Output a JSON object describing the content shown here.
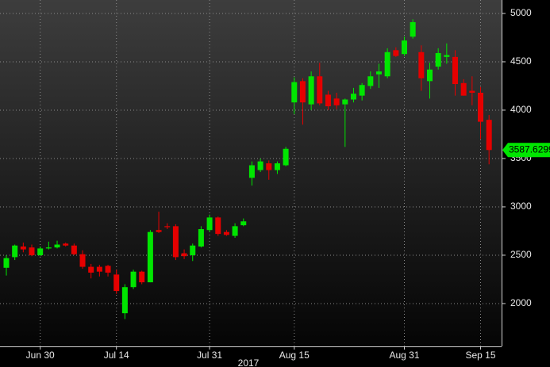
{
  "chart_data": {
    "type": "candlestick",
    "categories": [
      null,
      null,
      null,
      null,
      "Jun 30",
      null,
      null,
      null,
      null,
      null,
      null,
      null,
      null,
      "Jul 14",
      null,
      null,
      null,
      null,
      null,
      null,
      null,
      null,
      null,
      null,
      "Jul 31",
      null,
      null,
      null,
      null,
      null,
      null,
      null,
      null,
      null,
      "Aug 15",
      null,
      null,
      null,
      null,
      null,
      null,
      null,
      null,
      null,
      null,
      null,
      null,
      "Aug 31",
      null,
      null,
      null,
      null,
      null,
      null,
      null,
      null,
      "Sep 15",
      null
    ],
    "open": [
      2370,
      2480,
      2590,
      2580,
      2500,
      2570,
      2580,
      2620,
      2600,
      2510,
      2380,
      2380,
      2390,
      2300,
      1900,
      2170,
      2330,
      2220,
      2760,
      2800,
      2800,
      2520,
      2500,
      2590,
      2760,
      2890,
      2740,
      2700,
      2810,
      3300,
      3380,
      3450,
      3380,
      3430,
      4080,
      4300,
      4060,
      4350,
      4160,
      4120,
      4060,
      4110,
      4150,
      4250,
      4370,
      4350,
      4620,
      4580,
      4760,
      4600,
      4300,
      4450,
      4550,
      4550,
      4280,
      4200,
      4180,
      3900
    ],
    "high": [
      2500,
      2610,
      2630,
      2610,
      2590,
      2640,
      2650,
      2630,
      2620,
      2550,
      2410,
      2400,
      2400,
      2350,
      2200,
      2350,
      2340,
      2760,
      2950,
      2830,
      2820,
      2560,
      2620,
      2800,
      2920,
      2900,
      2760,
      2830,
      2880,
      3470,
      3500,
      3480,
      3470,
      3620,
      4340,
      4330,
      4400,
      4490,
      4200,
      4180,
      4120,
      4230,
      4280,
      4400,
      4480,
      4640,
      4650,
      4760,
      4940,
      4670,
      4490,
      4640,
      4690,
      4620,
      4320,
      4350,
      4240,
      3950
    ],
    "low": [
      2290,
      2450,
      2530,
      2490,
      2490,
      2560,
      2570,
      2590,
      2500,
      2360,
      2260,
      2280,
      2280,
      2100,
      1840,
      2150,
      2200,
      2220,
      2730,
      2770,
      2450,
      2460,
      2440,
      2580,
      2740,
      2700,
      2700,
      2680,
      2800,
      3220,
      3360,
      3280,
      3340,
      3420,
      3960,
      3850,
      4000,
      4050,
      4000,
      4010,
      3620,
      4080,
      4100,
      4220,
      4230,
      4330,
      4550,
      4560,
      4740,
      4200,
      4120,
      4420,
      4480,
      4150,
      4150,
      4050,
      3700,
      3440
    ],
    "close": [
      2470,
      2600,
      2560,
      2500,
      2570,
      2580,
      2610,
      2600,
      2510,
      2380,
      2320,
      2330,
      2320,
      2130,
      2170,
      2330,
      2220,
      2740,
      2740,
      2790,
      2480,
      2490,
      2600,
      2770,
      2890,
      2720,
      2710,
      2800,
      2850,
      3430,
      3470,
      3380,
      3450,
      3600,
      4290,
      4080,
      4350,
      4070,
      4040,
      4050,
      4110,
      4170,
      4260,
      4350,
      4400,
      4600,
      4560,
      4720,
      4910,
      4330,
      4420,
      4590,
      4570,
      4270,
      4150,
      4180,
      3880,
      3587.6299
    ],
    "up_color": "#00e600",
    "down_color": "#e60000",
    "ylim": [
      1557,
      5139
    ],
    "yticks": [
      2000,
      2500,
      3000,
      3500,
      4000,
      4500,
      5000
    ],
    "grid": true,
    "x_year_label": "2017"
  }
}
